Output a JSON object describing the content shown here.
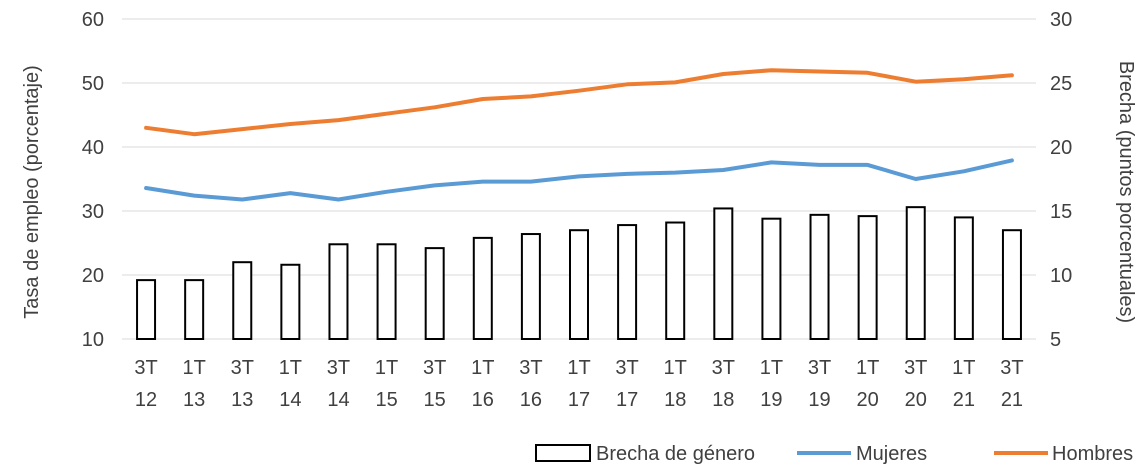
{
  "chart_data": {
    "type": "bar+line",
    "categories": [
      [
        "3T",
        "12"
      ],
      [
        "1T",
        "13"
      ],
      [
        "3T",
        "13"
      ],
      [
        "1T",
        "14"
      ],
      [
        "3T",
        "14"
      ],
      [
        "1T",
        "15"
      ],
      [
        "3T",
        "15"
      ],
      [
        "1T",
        "16"
      ],
      [
        "3T",
        "16"
      ],
      [
        "1T",
        "17"
      ],
      [
        "3T",
        "17"
      ],
      [
        "1T",
        "18"
      ],
      [
        "3T",
        "18"
      ],
      [
        "1T",
        "19"
      ],
      [
        "3T",
        "19"
      ],
      [
        "1T",
        "20"
      ],
      [
        "3T",
        "20"
      ],
      [
        "1T",
        "21"
      ],
      [
        "3T",
        "21"
      ]
    ],
    "y_left": {
      "label": "Tasa de empleo (porcentaje)",
      "min": 10,
      "max": 60,
      "ticks": [
        "10",
        "20",
        "30",
        "40",
        "50",
        "60"
      ]
    },
    "y_right": {
      "label": "Brecha (puntos porcentuales)",
      "min": 5,
      "max": 30,
      "ticks": [
        "5",
        "10",
        "15",
        "20",
        "25",
        "30"
      ]
    },
    "series": [
      {
        "name": "Brecha de género",
        "kind": "bar",
        "axis": "right",
        "color": "#000000",
        "values": [
          9.6,
          9.6,
          11.0,
          10.8,
          12.4,
          12.4,
          12.1,
          12.9,
          13.2,
          13.5,
          13.9,
          14.1,
          15.2,
          14.4,
          14.7,
          14.6,
          15.3,
          14.5,
          13.5
        ]
      },
      {
        "name": "Mujeres",
        "kind": "line",
        "axis": "left",
        "color": "#5B9BD5",
        "values": [
          33.6,
          32.4,
          31.8,
          32.8,
          31.8,
          33.0,
          34.0,
          34.6,
          34.6,
          35.4,
          35.8,
          36.0,
          36.4,
          37.6,
          37.2,
          37.2,
          35.0,
          36.2,
          37.9
        ]
      },
      {
        "name": "Hombres",
        "kind": "line",
        "axis": "left",
        "color": "#ED7D31",
        "values": [
          43.0,
          42.0,
          42.8,
          43.6,
          44.2,
          45.2,
          46.2,
          47.5,
          47.9,
          48.8,
          49.8,
          50.1,
          51.4,
          52.0,
          51.8,
          51.6,
          50.2,
          50.6,
          51.2
        ]
      }
    ],
    "legend_position": "bottom-right",
    "grid": true
  }
}
